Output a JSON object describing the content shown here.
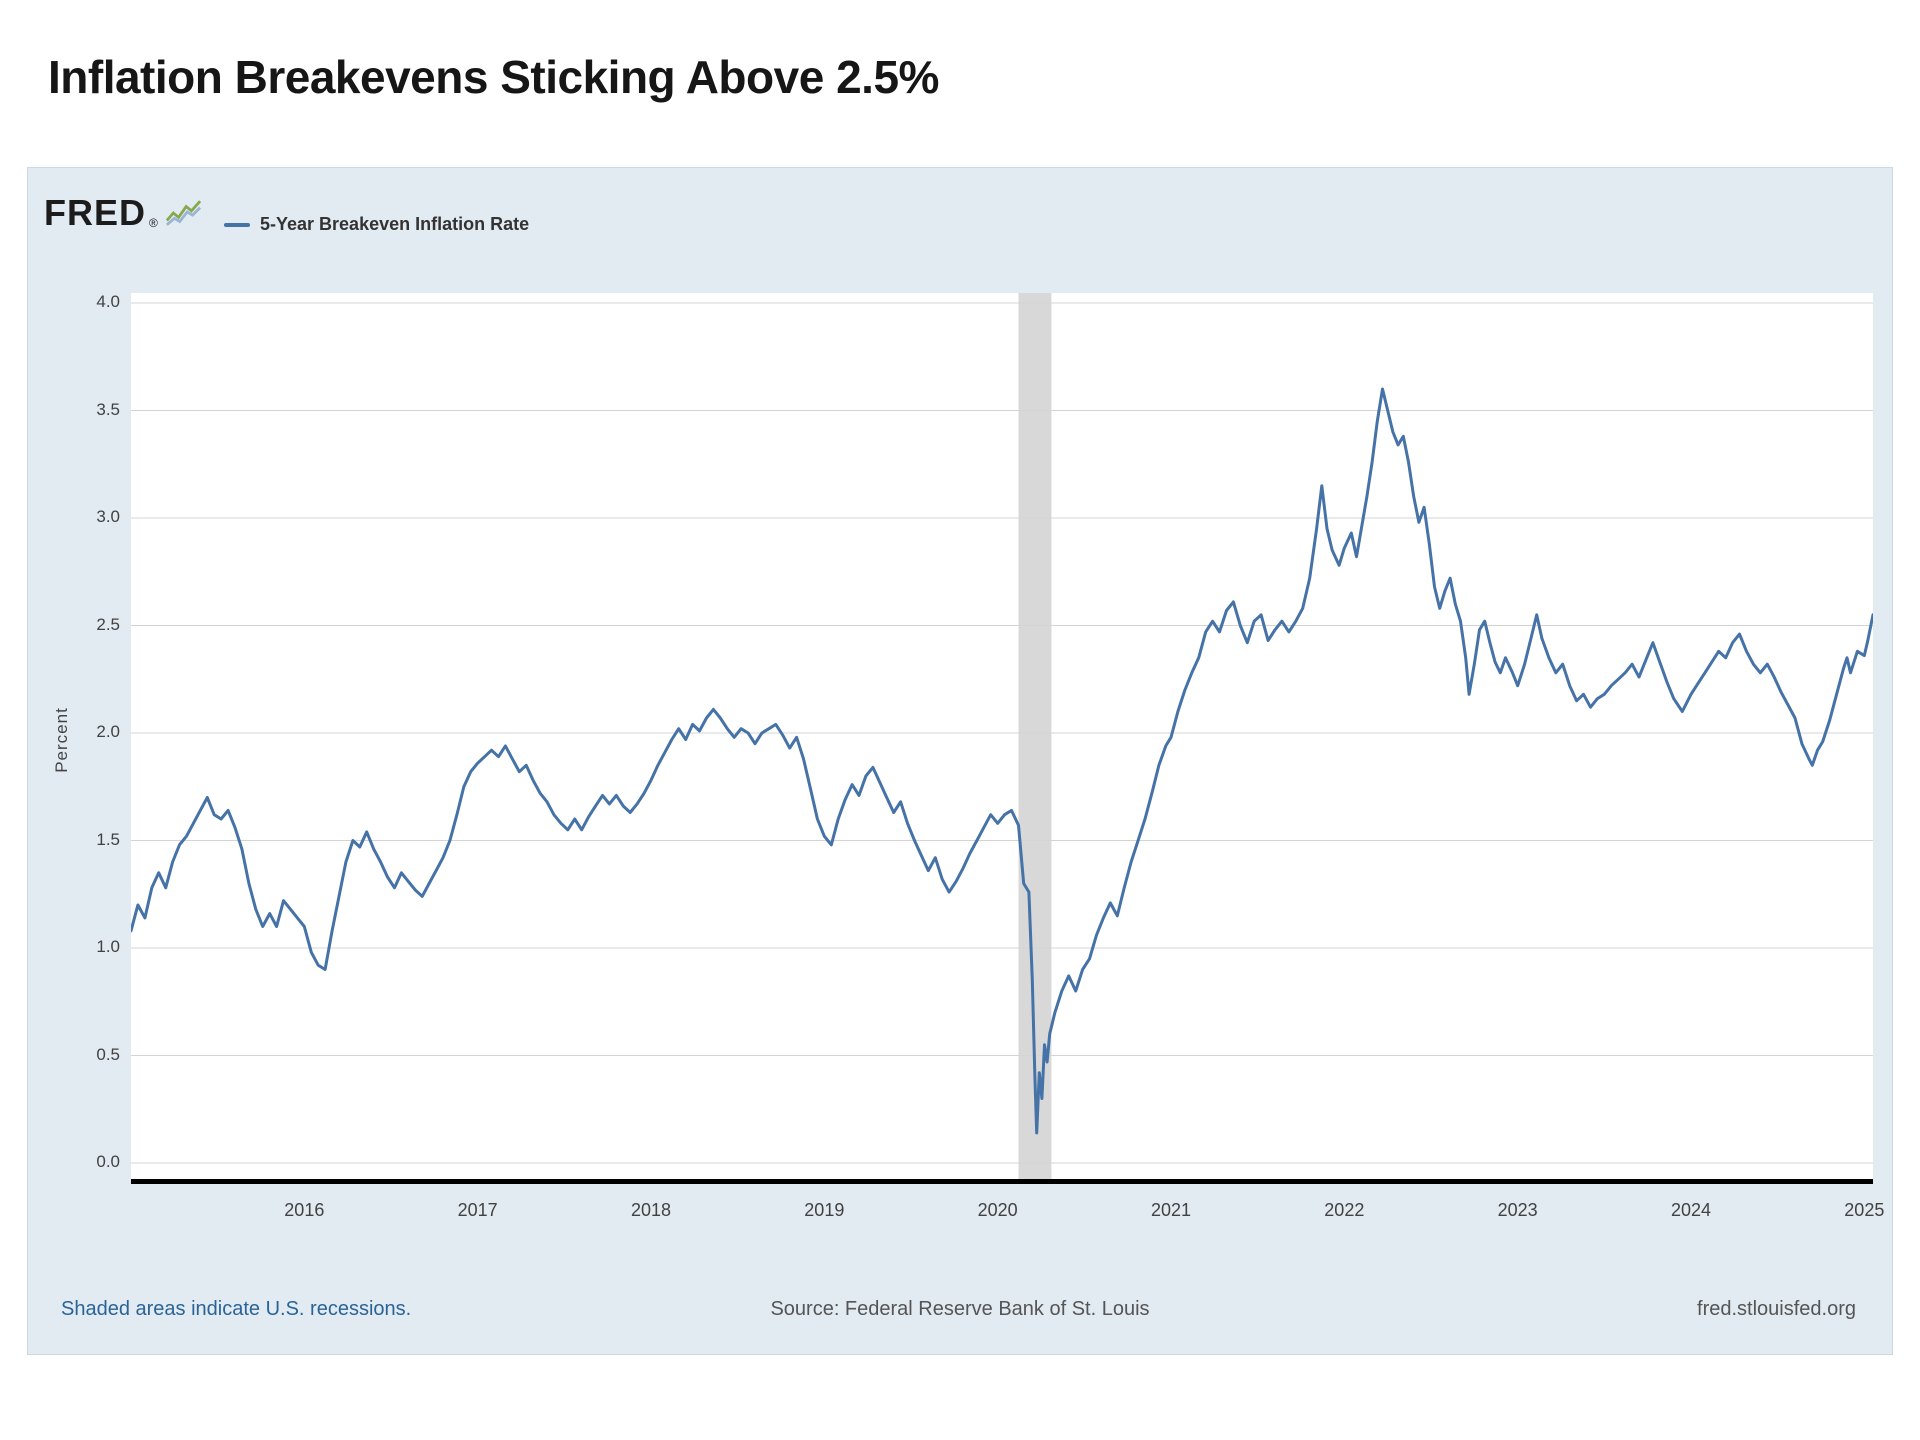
{
  "page": {
    "title": "Inflation Breakevens Sticking Above 2.5%"
  },
  "chart": {
    "brand": "FRED",
    "brand_reg": "®",
    "legend_label": "5-Year Breakeven Inflation Rate",
    "ylabel": "Percent",
    "footer": {
      "left": "Shaded areas indicate U.S. recessions.",
      "center": "Source: Federal Reserve Bank of St. Louis",
      "right": "fred.stlouisfed.org"
    },
    "colors": {
      "line": "#4572a7",
      "recession": "#d8d8d8",
      "grid": "#d4d4d4",
      "axis": "#000000",
      "plot_bg": "#ffffff",
      "container_bg": "#e2eaf2",
      "footer_link": "#2a6496",
      "footer_text": "#555555"
    }
  },
  "chart_data": {
    "type": "line",
    "title": "Inflation Breakevens Sticking Above 2.5%",
    "xlabel": "",
    "ylabel": "Percent",
    "xlim": [
      2015.0,
      2025.05
    ],
    "ylim": [
      0.0,
      4.0
    ],
    "yticks": [
      0.0,
      0.5,
      1.0,
      1.5,
      2.0,
      2.5,
      3.0,
      3.5,
      4.0
    ],
    "xticks": [
      2016,
      2017,
      2018,
      2019,
      2020,
      2021,
      2022,
      2023,
      2024,
      2025
    ],
    "grid": "horizontal",
    "legend_position": "top-left",
    "recessions": [
      [
        2020.12,
        2020.31
      ]
    ],
    "series": [
      {
        "name": "5-Year Breakeven Inflation Rate",
        "points": [
          [
            2015.0,
            1.08
          ],
          [
            2015.04,
            1.2
          ],
          [
            2015.08,
            1.14
          ],
          [
            2015.12,
            1.28
          ],
          [
            2015.16,
            1.35
          ],
          [
            2015.2,
            1.28
          ],
          [
            2015.24,
            1.4
          ],
          [
            2015.28,
            1.48
          ],
          [
            2015.32,
            1.52
          ],
          [
            2015.36,
            1.58
          ],
          [
            2015.4,
            1.64
          ],
          [
            2015.44,
            1.7
          ],
          [
            2015.48,
            1.62
          ],
          [
            2015.52,
            1.6
          ],
          [
            2015.56,
            1.64
          ],
          [
            2015.6,
            1.56
          ],
          [
            2015.64,
            1.46
          ],
          [
            2015.68,
            1.3
          ],
          [
            2015.72,
            1.18
          ],
          [
            2015.76,
            1.1
          ],
          [
            2015.8,
            1.16
          ],
          [
            2015.84,
            1.1
          ],
          [
            2015.88,
            1.22
          ],
          [
            2015.92,
            1.18
          ],
          [
            2015.96,
            1.14
          ],
          [
            2016.0,
            1.1
          ],
          [
            2016.04,
            0.98
          ],
          [
            2016.08,
            0.92
          ],
          [
            2016.12,
            0.9
          ],
          [
            2016.16,
            1.08
          ],
          [
            2016.2,
            1.24
          ],
          [
            2016.24,
            1.4
          ],
          [
            2016.28,
            1.5
          ],
          [
            2016.32,
            1.47
          ],
          [
            2016.36,
            1.54
          ],
          [
            2016.4,
            1.46
          ],
          [
            2016.44,
            1.4
          ],
          [
            2016.48,
            1.33
          ],
          [
            2016.52,
            1.28
          ],
          [
            2016.56,
            1.35
          ],
          [
            2016.6,
            1.31
          ],
          [
            2016.64,
            1.27
          ],
          [
            2016.68,
            1.24
          ],
          [
            2016.72,
            1.3
          ],
          [
            2016.76,
            1.36
          ],
          [
            2016.8,
            1.42
          ],
          [
            2016.84,
            1.5
          ],
          [
            2016.88,
            1.62
          ],
          [
            2016.92,
            1.75
          ],
          [
            2016.96,
            1.82
          ],
          [
            2017.0,
            1.86
          ],
          [
            2017.04,
            1.89
          ],
          [
            2017.08,
            1.92
          ],
          [
            2017.12,
            1.89
          ],
          [
            2017.16,
            1.94
          ],
          [
            2017.2,
            1.88
          ],
          [
            2017.24,
            1.82
          ],
          [
            2017.28,
            1.85
          ],
          [
            2017.32,
            1.78
          ],
          [
            2017.36,
            1.72
          ],
          [
            2017.4,
            1.68
          ],
          [
            2017.44,
            1.62
          ],
          [
            2017.48,
            1.58
          ],
          [
            2017.52,
            1.55
          ],
          [
            2017.56,
            1.6
          ],
          [
            2017.6,
            1.55
          ],
          [
            2017.64,
            1.61
          ],
          [
            2017.68,
            1.66
          ],
          [
            2017.72,
            1.71
          ],
          [
            2017.76,
            1.67
          ],
          [
            2017.8,
            1.71
          ],
          [
            2017.84,
            1.66
          ],
          [
            2017.88,
            1.63
          ],
          [
            2017.92,
            1.67
          ],
          [
            2017.96,
            1.72
          ],
          [
            2018.0,
            1.78
          ],
          [
            2018.04,
            1.85
          ],
          [
            2018.08,
            1.91
          ],
          [
            2018.12,
            1.97
          ],
          [
            2018.16,
            2.02
          ],
          [
            2018.2,
            1.97
          ],
          [
            2018.24,
            2.04
          ],
          [
            2018.28,
            2.01
          ],
          [
            2018.32,
            2.07
          ],
          [
            2018.36,
            2.11
          ],
          [
            2018.4,
            2.07
          ],
          [
            2018.44,
            2.02
          ],
          [
            2018.48,
            1.98
          ],
          [
            2018.52,
            2.02
          ],
          [
            2018.56,
            2.0
          ],
          [
            2018.6,
            1.95
          ],
          [
            2018.64,
            2.0
          ],
          [
            2018.68,
            2.02
          ],
          [
            2018.72,
            2.04
          ],
          [
            2018.76,
            1.99
          ],
          [
            2018.8,
            1.93
          ],
          [
            2018.84,
            1.98
          ],
          [
            2018.88,
            1.88
          ],
          [
            2018.92,
            1.74
          ],
          [
            2018.96,
            1.6
          ],
          [
            2019.0,
            1.52
          ],
          [
            2019.04,
            1.48
          ],
          [
            2019.08,
            1.6
          ],
          [
            2019.12,
            1.69
          ],
          [
            2019.16,
            1.76
          ],
          [
            2019.2,
            1.71
          ],
          [
            2019.24,
            1.8
          ],
          [
            2019.28,
            1.84
          ],
          [
            2019.32,
            1.77
          ],
          [
            2019.36,
            1.7
          ],
          [
            2019.4,
            1.63
          ],
          [
            2019.44,
            1.68
          ],
          [
            2019.48,
            1.58
          ],
          [
            2019.52,
            1.5
          ],
          [
            2019.56,
            1.43
          ],
          [
            2019.6,
            1.36
          ],
          [
            2019.64,
            1.42
          ],
          [
            2019.68,
            1.32
          ],
          [
            2019.72,
            1.26
          ],
          [
            2019.76,
            1.31
          ],
          [
            2019.8,
            1.37
          ],
          [
            2019.84,
            1.44
          ],
          [
            2019.88,
            1.5
          ],
          [
            2019.92,
            1.56
          ],
          [
            2019.96,
            1.62
          ],
          [
            2020.0,
            1.58
          ],
          [
            2020.04,
            1.62
          ],
          [
            2020.08,
            1.64
          ],
          [
            2020.12,
            1.57
          ],
          [
            2020.15,
            1.3
          ],
          [
            2020.18,
            1.26
          ],
          [
            2020.2,
            0.85
          ],
          [
            2020.215,
            0.4
          ],
          [
            2020.225,
            0.14
          ],
          [
            2020.24,
            0.42
          ],
          [
            2020.255,
            0.3
          ],
          [
            2020.27,
            0.55
          ],
          [
            2020.285,
            0.47
          ],
          [
            2020.3,
            0.6
          ],
          [
            2020.33,
            0.7
          ],
          [
            2020.37,
            0.8
          ],
          [
            2020.41,
            0.87
          ],
          [
            2020.45,
            0.8
          ],
          [
            2020.49,
            0.9
          ],
          [
            2020.53,
            0.95
          ],
          [
            2020.57,
            1.06
          ],
          [
            2020.61,
            1.14
          ],
          [
            2020.65,
            1.21
          ],
          [
            2020.69,
            1.15
          ],
          [
            2020.73,
            1.28
          ],
          [
            2020.77,
            1.4
          ],
          [
            2020.81,
            1.5
          ],
          [
            2020.85,
            1.6
          ],
          [
            2020.89,
            1.72
          ],
          [
            2020.93,
            1.85
          ],
          [
            2020.97,
            1.94
          ],
          [
            2021.0,
            1.98
          ],
          [
            2021.04,
            2.1
          ],
          [
            2021.08,
            2.2
          ],
          [
            2021.12,
            2.28
          ],
          [
            2021.16,
            2.35
          ],
          [
            2021.2,
            2.47
          ],
          [
            2021.24,
            2.52
          ],
          [
            2021.28,
            2.47
          ],
          [
            2021.32,
            2.57
          ],
          [
            2021.36,
            2.61
          ],
          [
            2021.4,
            2.5
          ],
          [
            2021.44,
            2.42
          ],
          [
            2021.48,
            2.52
          ],
          [
            2021.52,
            2.55
          ],
          [
            2021.56,
            2.43
          ],
          [
            2021.6,
            2.48
          ],
          [
            2021.64,
            2.52
          ],
          [
            2021.68,
            2.47
          ],
          [
            2021.72,
            2.52
          ],
          [
            2021.76,
            2.58
          ],
          [
            2021.8,
            2.72
          ],
          [
            2021.84,
            2.95
          ],
          [
            2021.87,
            3.15
          ],
          [
            2021.9,
            2.95
          ],
          [
            2021.93,
            2.85
          ],
          [
            2021.97,
            2.78
          ],
          [
            2022.0,
            2.86
          ],
          [
            2022.04,
            2.93
          ],
          [
            2022.07,
            2.82
          ],
          [
            2022.1,
            2.96
          ],
          [
            2022.13,
            3.1
          ],
          [
            2022.16,
            3.26
          ],
          [
            2022.19,
            3.45
          ],
          [
            2022.22,
            3.6
          ],
          [
            2022.25,
            3.5
          ],
          [
            2022.28,
            3.4
          ],
          [
            2022.31,
            3.34
          ],
          [
            2022.34,
            3.38
          ],
          [
            2022.37,
            3.26
          ],
          [
            2022.4,
            3.1
          ],
          [
            2022.43,
            2.98
          ],
          [
            2022.46,
            3.05
          ],
          [
            2022.49,
            2.88
          ],
          [
            2022.52,
            2.68
          ],
          [
            2022.55,
            2.58
          ],
          [
            2022.58,
            2.66
          ],
          [
            2022.61,
            2.72
          ],
          [
            2022.64,
            2.6
          ],
          [
            2022.67,
            2.52
          ],
          [
            2022.7,
            2.35
          ],
          [
            2022.72,
            2.18
          ],
          [
            2022.75,
            2.32
          ],
          [
            2022.78,
            2.48
          ],
          [
            2022.81,
            2.52
          ],
          [
            2022.84,
            2.42
          ],
          [
            2022.87,
            2.33
          ],
          [
            2022.9,
            2.28
          ],
          [
            2022.93,
            2.35
          ],
          [
            2022.97,
            2.28
          ],
          [
            2023.0,
            2.22
          ],
          [
            2023.04,
            2.32
          ],
          [
            2023.08,
            2.45
          ],
          [
            2023.11,
            2.55
          ],
          [
            2023.14,
            2.44
          ],
          [
            2023.18,
            2.35
          ],
          [
            2023.22,
            2.28
          ],
          [
            2023.26,
            2.32
          ],
          [
            2023.3,
            2.22
          ],
          [
            2023.34,
            2.15
          ],
          [
            2023.38,
            2.18
          ],
          [
            2023.42,
            2.12
          ],
          [
            2023.46,
            2.16
          ],
          [
            2023.5,
            2.18
          ],
          [
            2023.54,
            2.22
          ],
          [
            2023.58,
            2.25
          ],
          [
            2023.62,
            2.28
          ],
          [
            2023.66,
            2.32
          ],
          [
            2023.7,
            2.26
          ],
          [
            2023.74,
            2.34
          ],
          [
            2023.78,
            2.42
          ],
          [
            2023.82,
            2.33
          ],
          [
            2023.86,
            2.24
          ],
          [
            2023.9,
            2.16
          ],
          [
            2023.95,
            2.1
          ],
          [
            2024.0,
            2.18
          ],
          [
            2024.04,
            2.23
          ],
          [
            2024.08,
            2.28
          ],
          [
            2024.12,
            2.33
          ],
          [
            2024.16,
            2.38
          ],
          [
            2024.2,
            2.35
          ],
          [
            2024.24,
            2.42
          ],
          [
            2024.28,
            2.46
          ],
          [
            2024.32,
            2.38
          ],
          [
            2024.36,
            2.32
          ],
          [
            2024.4,
            2.28
          ],
          [
            2024.44,
            2.32
          ],
          [
            2024.48,
            2.26
          ],
          [
            2024.52,
            2.19
          ],
          [
            2024.56,
            2.13
          ],
          [
            2024.6,
            2.07
          ],
          [
            2024.64,
            1.95
          ],
          [
            2024.68,
            1.88
          ],
          [
            2024.7,
            1.85
          ],
          [
            2024.73,
            1.92
          ],
          [
            2024.76,
            1.96
          ],
          [
            2024.8,
            2.06
          ],
          [
            2024.84,
            2.18
          ],
          [
            2024.88,
            2.3
          ],
          [
            2024.9,
            2.35
          ],
          [
            2024.92,
            2.28
          ],
          [
            2024.96,
            2.38
          ],
          [
            2025.0,
            2.36
          ],
          [
            2025.02,
            2.43
          ],
          [
            2025.05,
            2.55
          ]
        ]
      }
    ]
  }
}
